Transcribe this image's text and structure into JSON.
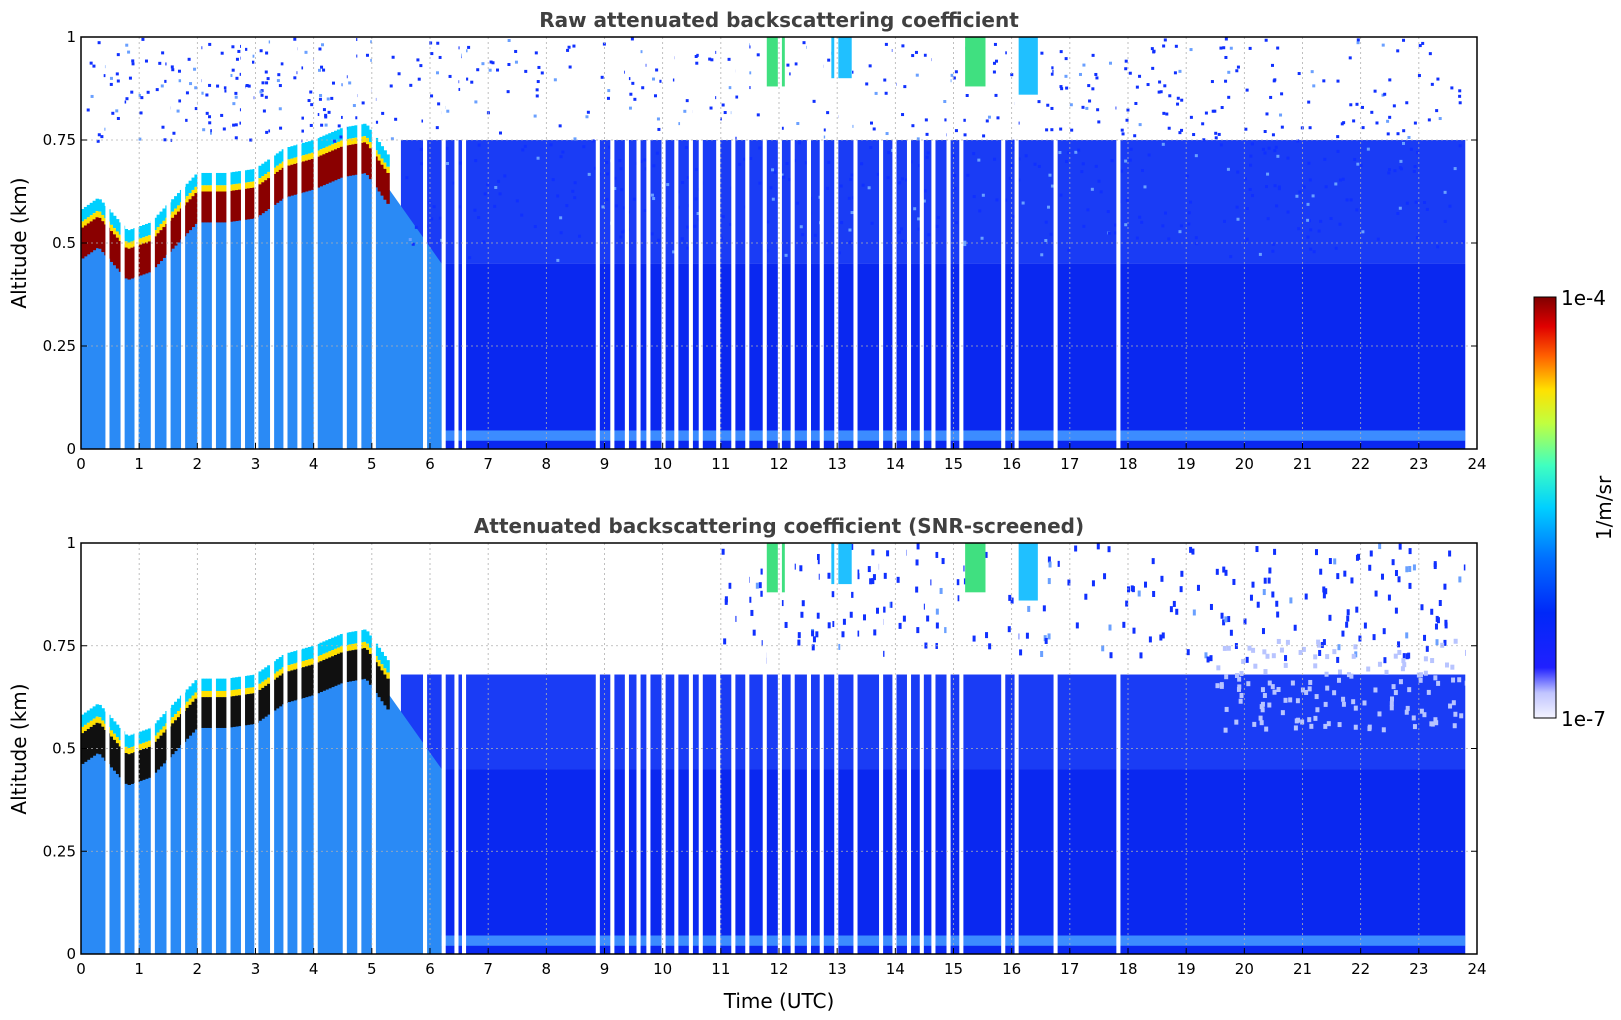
{
  "chart_data": [
    {
      "type": "heatmap",
      "title": "Raw attenuated backscattering coefficient",
      "xlabel": "",
      "ylabel": "Altitude (km)",
      "xlim": [
        0,
        24
      ],
      "ylim": [
        0,
        1
      ],
      "xticks": [
        "0",
        "1",
        "2",
        "3",
        "4",
        "5",
        "6",
        "7",
        "8",
        "9",
        "10",
        "11",
        "12",
        "13",
        "14",
        "15",
        "16",
        "17",
        "18",
        "19",
        "20",
        "21",
        "22",
        "23",
        "24"
      ],
      "yticks": [
        "0",
        "0.25",
        "0.5",
        "0.75",
        "1"
      ],
      "grid": true,
      "screened": false
    },
    {
      "type": "heatmap",
      "title": "Attenuated backscattering coefficient (SNR-screened)",
      "xlabel": "Time (UTC)",
      "ylabel": "Altitude (km)",
      "xlim": [
        0,
        24
      ],
      "ylim": [
        0,
        1
      ],
      "xticks": [
        "0",
        "1",
        "2",
        "3",
        "4",
        "5",
        "6",
        "7",
        "8",
        "9",
        "10",
        "11",
        "12",
        "13",
        "14",
        "15",
        "16",
        "17",
        "18",
        "19",
        "20",
        "21",
        "22",
        "23",
        "24"
      ],
      "yticks": [
        "0",
        "0.25",
        "0.5",
        "0.75",
        "1"
      ],
      "grid": true,
      "screened": true
    }
  ],
  "colorbar": {
    "max_label": "1e-4",
    "min_label": "1e-7",
    "unit_label": "1/m/sr",
    "colormap": "jet",
    "scale": "log"
  },
  "data_gaps_hours": [
    0.42,
    0.68,
    0.92,
    1.2,
    1.47,
    1.72,
    2.0,
    2.25,
    2.5,
    2.75,
    2.98,
    3.25,
    3.48,
    3.72,
    4.0,
    4.5,
    4.75,
    5.0,
    5.88,
    6.2,
    6.42,
    6.55,
    8.85,
    9.1,
    9.35,
    9.55,
    9.72,
    9.98,
    10.2,
    10.45,
    10.62,
    10.92,
    11.18,
    11.42,
    11.72,
    11.98,
    12.2,
    12.48,
    12.7,
    12.95,
    13.28,
    13.72,
    13.95,
    14.2,
    14.42,
    14.62,
    14.88,
    15.1,
    15.82,
    16.05,
    16.72,
    17.8,
    23.8
  ],
  "boundary_layer_top_km": [
    [
      0.0,
      0.55
    ],
    [
      0.3,
      0.58
    ],
    [
      0.8,
      0.5
    ],
    [
      1.2,
      0.52
    ],
    [
      1.6,
      0.58
    ],
    [
      2.0,
      0.64
    ],
    [
      2.5,
      0.64
    ],
    [
      3.0,
      0.65
    ],
    [
      3.5,
      0.7
    ],
    [
      4.0,
      0.72
    ],
    [
      4.5,
      0.75
    ],
    [
      4.9,
      0.76
    ],
    [
      5.3,
      0.68
    ]
  ]
}
